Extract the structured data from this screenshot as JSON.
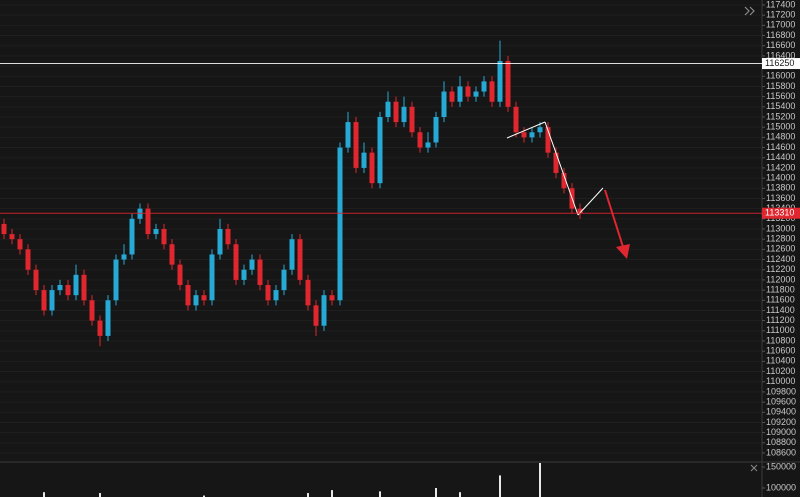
{
  "chart_data": {
    "type": "candlestick",
    "up_color": "#26a9d4",
    "down_color": "#e0262f",
    "open": [
      113100,
      112900,
      112800,
      112600,
      112200,
      111800,
      111400,
      111800,
      111900,
      111700,
      112100,
      111600,
      111200,
      110900,
      111600,
      112400,
      112500,
      113200,
      113400,
      112900,
      113000,
      112700,
      112300,
      111900,
      111500,
      111700,
      111600,
      112500,
      113000,
      112700,
      112000,
      112200,
      112400,
      111900,
      111600,
      111800,
      112200,
      112800,
      112000,
      111500,
      111100,
      111700,
      111600,
      114600,
      115100,
      114200,
      114500,
      113900,
      115200,
      115500,
      115100,
      115400,
      114900,
      114600,
      114700,
      115200,
      115700,
      115500,
      115800,
      115600,
      115700,
      115900,
      115500,
      116300,
      115400,
      114900,
      114800,
      114900,
      115000,
      114500,
      114100,
      113800,
      113400
    ],
    "high": [
      113200,
      113000,
      112900,
      112700,
      112300,
      111900,
      111900,
      112000,
      112000,
      112300,
      112200,
      111700,
      111300,
      111700,
      112500,
      112700,
      113300,
      113500,
      113500,
      113100,
      113100,
      112800,
      112400,
      112000,
      111800,
      111800,
      112600,
      113200,
      113100,
      112800,
      112300,
      112500,
      112500,
      112000,
      111900,
      112300,
      112900,
      112900,
      112100,
      111600,
      111800,
      111800,
      114700,
      115300,
      115200,
      114700,
      114600,
      115300,
      115700,
      115600,
      115600,
      115500,
      115000,
      114900,
      115300,
      115900,
      115800,
      116000,
      115900,
      115800,
      116000,
      116000,
      116700,
      116400,
      115500,
      115000,
      115000,
      115100,
      115100,
      114600,
      114200,
      113900,
      113500
    ],
    "low": [
      112800,
      112700,
      112500,
      112100,
      111700,
      111300,
      111300,
      111700,
      111600,
      111600,
      111500,
      111100,
      110700,
      110800,
      111500,
      112300,
      112400,
      113100,
      112800,
      112800,
      112600,
      112200,
      111800,
      111400,
      111400,
      111500,
      111500,
      112400,
      112600,
      111900,
      111900,
      112100,
      111800,
      111500,
      111500,
      111700,
      112100,
      111900,
      111400,
      110900,
      111000,
      111500,
      111500,
      114500,
      114100,
      114100,
      113800,
      113800,
      115100,
      115000,
      115000,
      114800,
      114500,
      114500,
      114600,
      115100,
      115400,
      115400,
      115500,
      115500,
      115600,
      115400,
      115400,
      115300,
      114800,
      114700,
      114700,
      114800,
      114400,
      114000,
      113700,
      113300,
      113200
    ],
    "close": [
      112900,
      112800,
      112600,
      112200,
      111800,
      111400,
      111800,
      111900,
      111700,
      112100,
      111600,
      111200,
      110900,
      111600,
      112400,
      112500,
      113200,
      113400,
      112900,
      113000,
      112700,
      112300,
      111900,
      111500,
      111700,
      111600,
      112500,
      113000,
      112700,
      112000,
      112200,
      112400,
      111900,
      111600,
      111800,
      112200,
      112800,
      112000,
      111500,
      111100,
      111700,
      111600,
      114600,
      115100,
      114200,
      114500,
      113900,
      115200,
      115500,
      115100,
      115400,
      114900,
      114600,
      114700,
      115200,
      115700,
      115500,
      115800,
      115600,
      115700,
      115900,
      115500,
      116300,
      115400,
      114900,
      114800,
      114900,
      115000,
      114500,
      114100,
      113800,
      113400,
      113310
    ],
    "volume": [
      60000,
      60000,
      60000,
      60000,
      60000,
      90000,
      60000,
      60000,
      60000,
      60000,
      60000,
      60000,
      88000,
      60000,
      60000,
      60000,
      60000,
      60000,
      60000,
      60000,
      60000,
      60000,
      60000,
      60000,
      60000,
      82000,
      60000,
      60000,
      60000,
      60000,
      60000,
      60000,
      60000,
      60000,
      60000,
      60000,
      60000,
      60000,
      88000,
      60000,
      60000,
      95000,
      60000,
      60000,
      60000,
      60000,
      60000,
      92000,
      60000,
      60000,
      60000,
      60000,
      60000,
      60000,
      100000,
      60000,
      60000,
      90000,
      60000,
      60000,
      60000,
      60000,
      130000,
      60000,
      60000,
      60000,
      60000,
      160000,
      60000,
      60000,
      60000,
      60000,
      60000
    ],
    "ylim": [
      108600,
      117400
    ],
    "yticks": [
      117400,
      117200,
      117000,
      116800,
      116600,
      116400,
      116200,
      116000,
      115800,
      115600,
      115400,
      115200,
      115000,
      114800,
      114600,
      114400,
      114200,
      114000,
      113800,
      113600,
      113400,
      113200,
      113000,
      112800,
      112600,
      112400,
      112200,
      112000,
      111800,
      111600,
      111400,
      111200,
      111000,
      110800,
      110600,
      110400,
      110200,
      110000,
      109800,
      109600,
      109400,
      109200,
      109000,
      108800,
      108600
    ],
    "y2ticks": [
      150000,
      100000
    ],
    "price_lines": [
      {
        "value": 116250,
        "color": "#ffffff"
      },
      {
        "value": 113310,
        "color": "#e0262f"
      }
    ],
    "grid": true
  }
}
